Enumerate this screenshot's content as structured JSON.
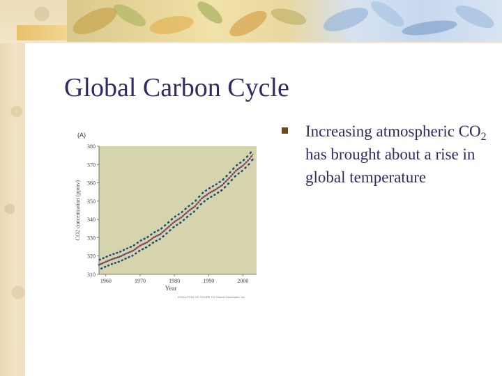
{
  "slide": {
    "title": "Global Carbon Cycle",
    "bullet": {
      "prefix": "Increasing atmospheric CO",
      "subscript": "2",
      "suffix": " has brought about a rise in global temperature"
    }
  },
  "colors": {
    "title": "#2d2b62",
    "plot_background": "#d6d4ad",
    "series_line": "#b03a50",
    "series_points": "#1f4e7a"
  },
  "figure": {
    "panel_label": "(A)",
    "credit": "EVOLUTION 2/E FIGURE 9.5 Sinauer Associates, Inc."
  },
  "chart_data": {
    "type": "line",
    "title": "",
    "xlabel": "Year",
    "ylabel": "CO2 concentration (ppmv)",
    "xlim": [
      1958,
      2004
    ],
    "ylim": [
      310,
      380
    ],
    "x_ticks": [
      1960,
      1970,
      1980,
      1990,
      2000
    ],
    "y_ticks": [
      310,
      320,
      330,
      340,
      350,
      360,
      370,
      380
    ],
    "grid": false,
    "legend": "none",
    "series": [
      {
        "x": [
          1958,
          1960,
          1962,
          1964,
          1966,
          1968,
          1970,
          1972,
          1974,
          1976,
          1978,
          1980,
          1982,
          1984,
          1986,
          1988,
          1990,
          1992,
          1994,
          1996,
          1998,
          2000,
          2002,
          2003
        ],
        "values": [
          315.2,
          316.9,
          318.4,
          319.6,
          321.4,
          323.0,
          325.7,
          327.5,
          330.2,
          332.1,
          335.4,
          338.7,
          341.1,
          344.4,
          347.2,
          351.5,
          354.2,
          356.3,
          358.8,
          362.6,
          366.7,
          369.4,
          373.2,
          375.8
        ],
        "seasonal_amplitude": 3
      }
    ]
  }
}
